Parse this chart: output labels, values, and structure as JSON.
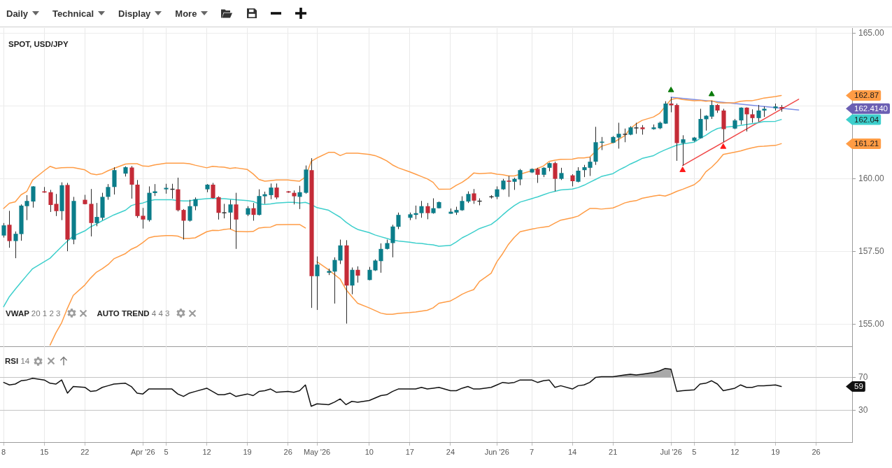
{
  "chart_data": [
    {
      "type": "other",
      "annotations": [
        "Daily",
        "Technical",
        "Display",
        "More"
      ]
    },
    {
      "type": "candlestick",
      "title": "SPOT, USD/JPY",
      "x": [
        "2026-03-08",
        "2026-03-09",
        "2026-03-10",
        "2026-03-11",
        "2026-03-12",
        "2026-03-13",
        "2026-03-15",
        "2026-03-16",
        "2026-03-17",
        "2026-03-18",
        "2026-03-19",
        "2026-03-20",
        "2026-03-22",
        "2026-03-23",
        "2026-03-24",
        "2026-03-25",
        "2026-03-26",
        "2026-03-27",
        "2026-03-29",
        "2026-03-30",
        "2026-03-31",
        "2026-04-01",
        "2026-04-02",
        "2026-04-03",
        "2026-04-05",
        "2026-04-06",
        "2026-04-07",
        "2026-04-08",
        "2026-04-09",
        "2026-04-10",
        "2026-04-12",
        "2026-04-13",
        "2026-04-14",
        "2026-04-15",
        "2026-04-16",
        "2026-04-17",
        "2026-04-19",
        "2026-04-20",
        "2026-04-21",
        "2026-04-22",
        "2026-04-23",
        "2026-04-24",
        "2026-04-26",
        "2026-04-27",
        "2026-04-28",
        "2026-04-29",
        "2026-04-30",
        "2026-05-01",
        "2026-05-03",
        "2026-05-04",
        "2026-05-05",
        "2026-05-06",
        "2026-05-07",
        "2026-05-08",
        "2026-05-10",
        "2026-05-11",
        "2026-05-12",
        "2026-05-13",
        "2026-05-14",
        "2026-05-15",
        "2026-05-17",
        "2026-05-18",
        "2026-05-19",
        "2026-05-20",
        "2026-05-21",
        "2026-05-22",
        "2026-05-24",
        "2026-05-25",
        "2026-05-26",
        "2026-05-27",
        "2026-05-28",
        "2026-05-29",
        "2026-05-31",
        "2026-06-01",
        "2026-06-02",
        "2026-06-03",
        "2026-06-04",
        "2026-06-05",
        "2026-06-07",
        "2026-06-08",
        "2026-06-09",
        "2026-06-10",
        "2026-06-11",
        "2026-06-12",
        "2026-06-14",
        "2026-06-15",
        "2026-06-16",
        "2026-06-17",
        "2026-06-18",
        "2026-06-19",
        "2026-06-21",
        "2026-06-22",
        "2026-06-23",
        "2026-06-24",
        "2026-06-25",
        "2026-06-26",
        "2026-06-28",
        "2026-06-29",
        "2026-06-30",
        "2026-07-01",
        "2026-07-02",
        "2026-07-03",
        "2026-07-05",
        "2026-07-06",
        "2026-07-07",
        "2026-07-08",
        "2026-07-09",
        "2026-07-10",
        "2026-07-12",
        "2026-07-13",
        "2026-07-14",
        "2026-07-15",
        "2026-07-16",
        "2026-07-17",
        "2026-07-19",
        "2026-07-20"
      ],
      "ohlc": [
        [
          158.05,
          158.48,
          157.98,
          158.4
        ],
        [
          158.42,
          158.9,
          157.63,
          157.86
        ],
        [
          157.86,
          158.19,
          157.27,
          158.11
        ],
        [
          158.1,
          159.12,
          157.87,
          159.08
        ],
        [
          159.06,
          159.44,
          158.58,
          159.24
        ],
        [
          159.22,
          159.75,
          159.01,
          159.74
        ],
        [
          159.57,
          159.72,
          159.52,
          159.53
        ],
        [
          159.54,
          159.62,
          158.86,
          159.1
        ],
        [
          159.14,
          159.48,
          158.72,
          158.89
        ],
        [
          158.89,
          159.88,
          158.58,
          159.78
        ],
        [
          159.79,
          159.86,
          157.51,
          157.91
        ],
        [
          157.91,
          159.38,
          157.75,
          159.24
        ],
        [
          159.28,
          159.45,
          159.12,
          159.13
        ],
        [
          159.14,
          159.65,
          158.02,
          158.48
        ],
        [
          158.48,
          159.17,
          158.37,
          158.69
        ],
        [
          158.66,
          159.52,
          158.58,
          159.38
        ],
        [
          159.38,
          159.82,
          159.28,
          159.72
        ],
        [
          159.72,
          160.4,
          159.46,
          160.3
        ],
        [
          160.18,
          160.43,
          160.08,
          160.4
        ],
        [
          160.39,
          160.44,
          159.32,
          159.8
        ],
        [
          159.8,
          159.96,
          158.66,
          158.72
        ],
        [
          158.73,
          159.0,
          158.29,
          158.6
        ],
        [
          158.58,
          159.74,
          158.53,
          159.52
        ],
        [
          159.51,
          159.82,
          159.41,
          159.57
        ],
        [
          159.64,
          159.83,
          159.49,
          159.69
        ],
        [
          159.66,
          159.83,
          159.32,
          159.66
        ],
        [
          159.64,
          160.04,
          158.88,
          158.92
        ],
        [
          158.93,
          158.96,
          157.91,
          158.56
        ],
        [
          158.56,
          159.28,
          158.53,
          159.06
        ],
        [
          159.06,
          159.36,
          158.92,
          159.3
        ],
        [
          159.64,
          159.82,
          159.54,
          159.8
        ],
        [
          159.8,
          159.86,
          159.32,
          159.34
        ],
        [
          159.37,
          159.4,
          158.6,
          158.83
        ],
        [
          158.85,
          159.14,
          158.64,
          158.85
        ],
        [
          158.84,
          159.28,
          158.27,
          159.12
        ],
        [
          159.12,
          159.52,
          157.59,
          158.6
        ],
        [
          158.77,
          159.06,
          158.72,
          158.99
        ],
        [
          158.99,
          159.17,
          158.56,
          158.76
        ],
        [
          158.76,
          159.64,
          158.74,
          159.41
        ],
        [
          159.4,
          159.56,
          159.14,
          159.47
        ],
        [
          159.44,
          159.84,
          159.3,
          159.7
        ],
        [
          159.7,
          159.84,
          159.3,
          159.36
        ],
        [
          159.57,
          159.58,
          159.52,
          159.53
        ],
        [
          159.52,
          159.6,
          159.12,
          159.4
        ],
        [
          159.38,
          159.76,
          158.96,
          159.54
        ],
        [
          159.52,
          160.46,
          159.49,
          160.32
        ],
        [
          160.3,
          160.71,
          155.56,
          156.65
        ],
        [
          156.65,
          157.33,
          155.49,
          157.05
        ],
        [
          156.77,
          156.91,
          156.69,
          156.83
        ],
        [
          156.81,
          157.3,
          155.71,
          157.21
        ],
        [
          157.19,
          157.91,
          157.07,
          157.71
        ],
        [
          157.71,
          157.89,
          155.02,
          156.33
        ],
        [
          156.33,
          156.95,
          156.03,
          156.87
        ],
        [
          156.87,
          156.99,
          156.43,
          156.67
        ],
        [
          156.52,
          156.97,
          156.51,
          156.87
        ],
        [
          156.85,
          157.23,
          156.83,
          157.19
        ],
        [
          157.17,
          157.78,
          156.77,
          157.59
        ],
        [
          157.59,
          157.91,
          157.57,
          157.79
        ],
        [
          157.79,
          158.42,
          157.3,
          158.36
        ],
        [
          158.35,
          158.84,
          158.27,
          158.76
        ],
        [
          158.66,
          158.84,
          158.58,
          158.78
        ],
        [
          158.76,
          159.08,
          158.61,
          158.82
        ],
        [
          158.82,
          159.24,
          158.66,
          159.06
        ],
        [
          159.06,
          159.17,
          158.61,
          158.82
        ],
        [
          158.82,
          159.33,
          158.8,
          158.99
        ],
        [
          158.99,
          159.22,
          158.98,
          159.2
        ],
        [
          158.8,
          158.98,
          158.8,
          158.87
        ],
        [
          158.84,
          159.04,
          158.76,
          158.93
        ],
        [
          158.92,
          159.4,
          158.9,
          159.24
        ],
        [
          159.22,
          159.57,
          159.17,
          159.48
        ],
        [
          159.5,
          159.65,
          159.14,
          159.25
        ],
        [
          159.25,
          159.33,
          159.09,
          159.25
        ],
        [
          159.4,
          159.44,
          159.32,
          159.4
        ],
        [
          159.38,
          159.74,
          159.3,
          159.64
        ],
        [
          159.64,
          160.0,
          159.62,
          159.94
        ],
        [
          159.94,
          160.1,
          159.38,
          159.9
        ],
        [
          159.9,
          160.04,
          159.62,
          160.0
        ],
        [
          159.98,
          160.34,
          159.78,
          160.3
        ],
        [
          160.22,
          160.36,
          160.2,
          160.34
        ],
        [
          160.34,
          160.38,
          159.86,
          160.14
        ],
        [
          160.14,
          160.4,
          160.06,
          160.38
        ],
        [
          160.38,
          160.56,
          160.26,
          160.54
        ],
        [
          160.54,
          160.59,
          159.57,
          160.0
        ],
        [
          160.0,
          160.38,
          159.96,
          160.2
        ],
        [
          160.12,
          160.16,
          159.74,
          159.92
        ],
        [
          159.9,
          160.4,
          159.88,
          160.28
        ],
        [
          160.3,
          160.48,
          160.06,
          160.4
        ],
        [
          160.38,
          160.75,
          160.1,
          160.59
        ],
        [
          160.59,
          161.79,
          160.48,
          161.26
        ],
        [
          161.24,
          161.44,
          160.99,
          161.28
        ],
        [
          161.24,
          161.47,
          161.23,
          161.44
        ],
        [
          161.42,
          161.93,
          161.04,
          161.55
        ],
        [
          161.55,
          161.73,
          161.26,
          161.55
        ],
        [
          161.52,
          161.81,
          161.5,
          161.77
        ],
        [
          161.77,
          161.93,
          161.55,
          161.77
        ],
        [
          161.77,
          161.85,
          161.52,
          161.71
        ],
        [
          161.71,
          161.87,
          161.69,
          161.77
        ],
        [
          161.74,
          161.97,
          161.71,
          161.93
        ],
        [
          161.9,
          162.67,
          161.89,
          162.59
        ],
        [
          162.59,
          162.81,
          162.29,
          162.53
        ],
        [
          162.54,
          162.59,
          160.62,
          161.23
        ],
        [
          161.23,
          161.5,
          160.46,
          161.36
        ],
        [
          161.31,
          161.44,
          161.28,
          161.42
        ],
        [
          161.4,
          162.41,
          161.39,
          162.06
        ],
        [
          162.05,
          162.19,
          161.66,
          162.17
        ],
        [
          162.14,
          162.69,
          162.06,
          162.54
        ],
        [
          162.54,
          162.57,
          162.27,
          162.35
        ],
        [
          162.35,
          162.41,
          161.26,
          161.71
        ],
        [
          161.73,
          162.06,
          161.71,
          162.01
        ],
        [
          162.01,
          162.46,
          161.87,
          162.45
        ],
        [
          162.45,
          162.46,
          161.63,
          162.22
        ],
        [
          162.22,
          162.39,
          161.93,
          162.09
        ],
        [
          162.09,
          162.54,
          161.97,
          162.35
        ],
        [
          162.35,
          162.49,
          162.13,
          162.41
        ],
        [
          162.43,
          162.59,
          162.35,
          162.49
        ],
        [
          162.47,
          162.54,
          162.31,
          162.414
        ]
      ],
      "colors": [
        "#0b7d8a",
        "#c42b37",
        "#0b7d8a",
        "#0b7d8a",
        "#0b7d8a",
        "#0b7d8a",
        "#c42b37",
        "#c42b37",
        "#c42b37",
        "#0b7d8a",
        "#c42b37",
        "#0b7d8a",
        "#c42b37",
        "#c42b37",
        "#0b7d8a",
        "#0b7d8a",
        "#0b7d8a",
        "#0b7d8a",
        "#0b7d8a",
        "#c42b37",
        "#c42b37",
        "#c42b37",
        "#0b7d8a",
        "#0b7d8a",
        "#0b7d8a",
        "#333333",
        "#c42b37",
        "#c42b37",
        "#0b7d8a",
        "#0b7d8a",
        "#0b7d8a",
        "#c42b37",
        "#c42b37",
        "#333333",
        "#0b7d8a",
        "#c42b37",
        "#0b7d8a",
        "#c42b37",
        "#0b7d8a",
        "#0b7d8a",
        "#0b7d8a",
        "#c42b37",
        "#c42b37",
        "#c42b37",
        "#0b7d8a",
        "#0b7d8a",
        "#c42b37",
        "#0b7d8a",
        "#0b7d8a",
        "#0b7d8a",
        "#0b7d8a",
        "#c42b37",
        "#0b7d8a",
        "#c42b37",
        "#0b7d8a",
        "#0b7d8a",
        "#0b7d8a",
        "#0b7d8a",
        "#0b7d8a",
        "#0b7d8a",
        "#0b7d8a",
        "#0b7d8a",
        "#0b7d8a",
        "#c42b37",
        "#0b7d8a",
        "#0b7d8a",
        "#0b7d8a",
        "#0b7d8a",
        "#0b7d8a",
        "#0b7d8a",
        "#c42b37",
        "#333333",
        "#333333",
        "#0b7d8a",
        "#0b7d8a",
        "#c42b37",
        "#0b7d8a",
        "#0b7d8a",
        "#0b7d8a",
        "#c42b37",
        "#0b7d8a",
        "#0b7d8a",
        "#c42b37",
        "#0b7d8a",
        "#c42b37",
        "#0b7d8a",
        "#0b7d8a",
        "#0b7d8a",
        "#0b7d8a",
        "#0b7d8a",
        "#0b7d8a",
        "#0b7d8a",
        "#333333",
        "#0b7d8a",
        "#333333",
        "#c42b37",
        "#0b7d8a",
        "#0b7d8a",
        "#0b7d8a",
        "#c42b37",
        "#c42b37",
        "#0b7d8a",
        "#0b7d8a",
        "#0b7d8a",
        "#0b7d8a",
        "#0b7d8a",
        "#c42b37",
        "#c42b37",
        "#0b7d8a",
        "#0b7d8a",
        "#c42b37",
        "#c42b37",
        "#0b7d8a",
        "#0b7d8a",
        "#0b7d8a",
        "#c42b37"
      ],
      "series": [
        {
          "type": "line",
          "color": "#ff9c45",
          "values": [
            158.98,
            159.16,
            159.21,
            159.45,
            159.57,
            159.96,
            160.28,
            160.43,
            160.36,
            160.38,
            160.39,
            160.39,
            160.31,
            160.18,
            160.14,
            160.18,
            160.28,
            160.36,
            160.51,
            160.52,
            160.52,
            160.44,
            160.43,
            160.48,
            160.54,
            160.54,
            160.54,
            160.54,
            160.52,
            160.47,
            160.38,
            160.43,
            160.41,
            160.4,
            160.36,
            160.38,
            160.32,
            160.17,
            159.98,
            159.92,
            159.94,
            159.96,
            159.96,
            159.94,
            159.92,
            160.06,
            160.6,
            160.72,
            160.91,
            160.91,
            160.8,
            160.88,
            160.88,
            160.88,
            160.84,
            160.8,
            160.72,
            160.62,
            160.48,
            160.38,
            160.24,
            160.16,
            160.08,
            160.0,
            159.88,
            159.64,
            159.65,
            159.78,
            159.88,
            160.02,
            160.2,
            160.18,
            160.2,
            160.16,
            160.14,
            160.1,
            160.1,
            160.16,
            160.28,
            160.36,
            160.44,
            160.6,
            160.64,
            160.67,
            160.68,
            160.72,
            160.72,
            160.75,
            160.94,
            161.12,
            161.24,
            161.36,
            161.48,
            161.73,
            161.89,
            162.01,
            162.13,
            162.25,
            162.49,
            162.73,
            162.77,
            162.73,
            162.69,
            162.7,
            162.67,
            162.69,
            162.62,
            162.61,
            162.62,
            162.67,
            162.69,
            162.69,
            162.73,
            162.78,
            162.83,
            162.87
          ]
        },
        {
          "type": "line",
          "color": "#3dcfcc",
          "values": [
            155.6,
            155.95,
            156.2,
            156.44,
            156.68,
            156.91,
            157.15,
            157.27,
            157.47,
            157.67,
            157.86,
            158.03,
            158.21,
            158.35,
            158.45,
            158.56,
            158.66,
            158.76,
            158.92,
            159.08,
            159.14,
            159.17,
            159.24,
            159.28,
            159.28,
            159.28,
            159.25,
            159.24,
            159.24,
            159.28,
            159.32,
            159.33,
            159.32,
            159.32,
            159.3,
            159.28,
            159.25,
            159.22,
            159.14,
            159.12,
            159.14,
            159.17,
            159.19,
            159.19,
            159.17,
            159.19,
            159.12,
            159.01,
            158.92,
            158.8,
            158.68,
            158.51,
            158.37,
            158.26,
            158.15,
            158.07,
            158.01,
            157.95,
            157.89,
            157.86,
            157.82,
            157.79,
            157.78,
            157.75,
            157.73,
            157.68,
            157.71,
            157.83,
            157.97,
            158.07,
            158.18,
            158.29,
            158.43,
            158.58,
            158.76,
            158.93,
            159.08,
            159.2,
            159.32,
            159.38,
            159.45,
            159.52,
            159.57,
            159.62,
            159.65,
            159.7,
            159.78,
            159.88,
            159.98,
            160.08,
            160.18,
            160.3,
            160.4,
            160.51,
            160.6,
            160.7,
            160.8,
            160.91,
            161.0,
            161.08,
            161.16,
            161.2,
            161.26,
            161.39,
            161.5,
            161.63,
            161.73,
            161.77,
            161.81,
            161.84,
            161.87,
            161.9,
            161.93,
            161.97,
            161.98,
            162.04
          ]
        },
        {
          "type": "line",
          "color": "#ff9c45",
          "values": [
            null,
            null,
            null,
            null,
            null,
            null,
            null,
            154.28,
            154.7,
            155.05,
            155.55,
            155.99,
            156.35,
            156.59,
            156.79,
            156.91,
            157.05,
            157.25,
            157.43,
            157.58,
            157.67,
            157.81,
            157.97,
            158.02,
            158.05,
            158.05,
            158.03,
            157.95,
            157.95,
            157.97,
            158.18,
            158.23,
            158.22,
            158.26,
            158.28,
            158.19,
            158.18,
            158.19,
            158.31,
            158.33,
            158.34,
            158.42,
            158.43,
            158.43,
            158.43,
            158.31,
            null,
            157.15,
            156.87,
            156.71,
            156.55,
            156.19,
            155.95,
            155.72,
            155.56,
            155.47,
            155.38,
            155.34,
            155.34,
            155.37,
            155.4,
            155.42,
            155.45,
            155.48,
            155.56,
            155.72,
            155.8,
            155.91,
            156.03,
            156.12,
            156.19,
            156.47,
            156.75,
            157.15,
            157.43,
            157.75,
            157.99,
            158.18,
            158.27,
            158.31,
            158.34,
            158.37,
            158.48,
            158.58,
            158.66,
            158.72,
            158.85,
            158.98,
            158.98,
            158.96,
            159.0,
            159.08,
            159.17,
            159.22,
            159.25,
            159.33,
            159.41,
            159.44,
            159.41,
            159.48,
            159.57,
            159.64,
            159.8,
            159.96,
            160.24,
            160.4,
            160.6,
            160.84,
            160.92,
            160.96,
            161.02,
            161.07,
            161.11,
            161.12,
            161.15,
            161.21
          ]
        },
        {
          "type": "line",
          "color": "#7d8ee6",
          "x": [
            "2026-07-01",
            "2026-07-23"
          ],
          "values": [
            162.81,
            162.37
          ]
        },
        {
          "type": "line",
          "color": "#f04848",
          "x": [
            "2026-07-03",
            "2026-07-23"
          ],
          "values": [
            160.46,
            162.74
          ]
        },
        {
          "type": "scatter",
          "color": "#0a7a0a",
          "marker": "triangle",
          "x": [
            "2026-07-01",
            "2026-07-08"
          ],
          "values": [
            163.05,
            162.91
          ]
        },
        {
          "type": "scatter",
          "color": "#ff1a1a",
          "marker": "triangle",
          "x": [
            "2026-07-03",
            "2026-07-10"
          ],
          "values": [
            160.3,
            161.1
          ]
        }
      ],
      "xlim": [
        "2026-03-07T09:00",
        "2026-08-01T05:00"
      ],
      "xticks": [
        {
          "value": "2026-03-08",
          "label": null
        },
        {
          "value": "2026-03-15",
          "label": null
        },
        {
          "value": "2026-03-22",
          "label": null
        },
        {
          "value": "2026-04-01",
          "label": null
        },
        {
          "value": "2026-04-05",
          "label": null
        },
        {
          "value": "2026-04-12",
          "label": null
        },
        {
          "value": "2026-04-19",
          "label": null
        },
        {
          "value": "2026-04-26",
          "label": null
        },
        {
          "value": "2026-05-01",
          "label": null
        },
        {
          "value": "2026-05-10",
          "label": null
        },
        {
          "value": "2026-05-17",
          "label": null
        },
        {
          "value": "2026-05-24",
          "label": null
        },
        {
          "value": "2026-06-01",
          "label": null
        },
        {
          "value": "2026-06-07",
          "label": null
        },
        {
          "value": "2026-06-14",
          "label": null
        },
        {
          "value": "2026-06-21",
          "label": null
        },
        {
          "value": "2026-07-01",
          "label": null
        },
        {
          "value": "2026-07-05",
          "label": null
        },
        {
          "value": "2026-07-12",
          "label": null
        },
        {
          "value": "2026-07-19",
          "label": null
        },
        {
          "value": "2026-07-26",
          "label": null
        }
      ],
      "ylim": [
        154.24,
        165.19
      ],
      "yticks": [
        {
          "value": 155,
          "label": "155.00"
        },
        {
          "value": 157.5,
          "label": "157.50"
        },
        {
          "value": 160,
          "label": "160.00"
        },
        {
          "value": 162.5,
          "label": null
        },
        {
          "value": 165,
          "label": "165.00"
        }
      ],
      "grid": true,
      "tick_labels": "y",
      "annotations": [
        "VWAP 20 1 2 3",
        "AUTO TREND 4 4 3",
        "162.87",
        "162.4140",
        "162.04",
        "161.21"
      ]
    },
    {
      "type": "line",
      "title": "RSI 14",
      "x": [
        "2026-03-08",
        "2026-03-09",
        "2026-03-10",
        "2026-03-11",
        "2026-03-12",
        "2026-03-13",
        "2026-03-15",
        "2026-03-16",
        "2026-03-17",
        "2026-03-18",
        "2026-03-19",
        "2026-03-20",
        "2026-03-22",
        "2026-03-23",
        "2026-03-24",
        "2026-03-25",
        "2026-03-26",
        "2026-03-27",
        "2026-03-29",
        "2026-03-30",
        "2026-03-31",
        "2026-04-01",
        "2026-04-02",
        "2026-04-03",
        "2026-04-05",
        "2026-04-06",
        "2026-04-07",
        "2026-04-08",
        "2026-04-09",
        "2026-04-10",
        "2026-04-12",
        "2026-04-13",
        "2026-04-14",
        "2026-04-15",
        "2026-04-16",
        "2026-04-17",
        "2026-04-19",
        "2026-04-20",
        "2026-04-21",
        "2026-04-22",
        "2026-04-23",
        "2026-04-24",
        "2026-04-26",
        "2026-04-27",
        "2026-04-28",
        "2026-04-29",
        "2026-04-30",
        "2026-05-01",
        "2026-05-03",
        "2026-05-04",
        "2026-05-05",
        "2026-05-06",
        "2026-05-07",
        "2026-05-08",
        "2026-05-10",
        "2026-05-11",
        "2026-05-12",
        "2026-05-13",
        "2026-05-14",
        "2026-05-15",
        "2026-05-17",
        "2026-05-18",
        "2026-05-19",
        "2026-05-20",
        "2026-05-21",
        "2026-05-22",
        "2026-05-24",
        "2026-05-25",
        "2026-05-26",
        "2026-05-27",
        "2026-05-28",
        "2026-05-29",
        "2026-05-31",
        "2026-06-01",
        "2026-06-02",
        "2026-06-03",
        "2026-06-04",
        "2026-06-05",
        "2026-06-07",
        "2026-06-08",
        "2026-06-09",
        "2026-06-10",
        "2026-06-11",
        "2026-06-12",
        "2026-06-14",
        "2026-06-15",
        "2026-06-16",
        "2026-06-17",
        "2026-06-18",
        "2026-06-19",
        "2026-06-21",
        "2026-06-22",
        "2026-06-23",
        "2026-06-24",
        "2026-06-25",
        "2026-06-26",
        "2026-06-28",
        "2026-06-29",
        "2026-06-30",
        "2026-07-01",
        "2026-07-02",
        "2026-07-03",
        "2026-07-05",
        "2026-07-06",
        "2026-07-07",
        "2026-07-08",
        "2026-07-09",
        "2026-07-10",
        "2026-07-12",
        "2026-07-13",
        "2026-07-14",
        "2026-07-15",
        "2026-07-16",
        "2026-07-17",
        "2026-07-19",
        "2026-07-20"
      ],
      "series": [
        {
          "color": "#111111",
          "values": [
            64,
            61,
            62,
            66,
            67,
            69,
            67,
            63,
            62,
            67,
            51,
            59,
            58,
            53,
            54,
            58,
            60,
            62,
            63,
            59,
            51,
            50,
            56,
            56,
            56,
            56,
            50,
            47,
            51,
            53,
            57,
            53,
            49,
            49,
            51,
            47,
            50,
            48,
            53,
            54,
            56,
            52,
            53,
            52,
            54,
            61,
            35,
            38,
            37,
            40,
            44,
            37,
            41,
            40,
            42,
            45,
            48,
            49,
            53,
            56,
            56,
            56,
            58,
            56,
            57,
            58,
            54,
            54,
            57,
            59,
            56,
            56,
            58,
            61,
            64,
            63,
            64,
            67,
            67,
            64,
            66,
            67,
            58,
            60,
            56,
            60,
            61,
            64,
            70,
            71,
            71,
            72,
            73,
            74,
            73,
            74,
            76,
            78,
            81,
            80,
            53,
            54,
            55,
            62,
            63,
            66,
            62,
            54,
            57,
            61,
            58,
            58,
            60,
            60,
            61,
            59
          ],
          "lower": [
            null,
            null,
            null,
            null,
            null,
            null,
            null,
            null,
            null,
            null,
            null,
            null,
            null,
            null,
            null,
            null,
            null,
            null,
            null,
            null,
            null,
            null,
            null,
            null,
            null,
            null,
            null,
            null,
            null,
            null,
            null,
            null,
            null,
            null,
            null,
            null,
            null,
            null,
            null,
            null,
            null,
            null,
            null,
            null,
            null,
            null,
            null,
            null,
            null,
            null,
            null,
            null,
            null,
            null,
            null,
            null,
            null,
            null,
            null,
            null,
            null,
            null,
            null,
            null,
            null,
            null,
            null,
            null,
            null,
            null,
            null,
            null,
            null,
            null,
            null,
            null,
            null,
            null,
            null,
            null,
            null,
            null,
            null,
            null,
            null,
            null,
            null,
            null,
            70,
            70,
            70,
            70,
            70,
            70,
            70,
            70,
            70,
            70,
            70,
            70,
            null,
            null,
            null,
            null,
            null,
            null,
            null,
            null,
            null,
            null,
            null,
            null,
            null,
            null,
            null,
            null
          ],
          "upper": [
            null,
            null,
            null,
            null,
            null,
            null,
            null,
            null,
            null,
            null,
            null,
            null,
            null,
            null,
            null,
            null,
            null,
            null,
            null,
            null,
            null,
            null,
            null,
            null,
            null,
            null,
            null,
            null,
            null,
            null,
            null,
            null,
            null,
            null,
            null,
            null,
            null,
            null,
            null,
            null,
            null,
            null,
            null,
            null,
            null,
            null,
            null,
            null,
            null,
            null,
            null,
            null,
            null,
            null,
            null,
            null,
            null,
            null,
            null,
            null,
            null,
            null,
            null,
            null,
            null,
            null,
            null,
            null,
            null,
            null,
            null,
            null,
            null,
            null,
            null,
            null,
            null,
            null,
            null,
            null,
            null,
            null,
            null,
            null,
            null,
            null,
            null,
            null,
            70,
            71,
            71,
            72,
            73,
            74,
            73,
            74,
            76,
            78,
            81,
            80,
            null,
            null,
            null,
            null,
            null,
            null,
            null,
            null,
            null,
            null,
            null,
            null,
            null,
            null,
            null,
            null
          ]
        }
      ],
      "xlim": [
        "2026-03-07T09:00",
        "2026-08-01T05:00"
      ],
      "xticks": [
        {
          "value": "2026-03-08",
          "label": "8"
        },
        {
          "value": "2026-03-15",
          "label": "15"
        },
        {
          "value": "2026-03-22",
          "label": "22"
        },
        {
          "value": "2026-04-01",
          "label": "Apr '26"
        },
        {
          "value": "2026-04-05",
          "label": "5"
        },
        {
          "value": "2026-04-12",
          "label": "12"
        },
        {
          "value": "2026-04-19",
          "label": "19"
        },
        {
          "value": "2026-04-26",
          "label": "26"
        },
        {
          "value": "2026-05-01",
          "label": "May '26"
        },
        {
          "value": "2026-05-10",
          "label": "10"
        },
        {
          "value": "2026-05-17",
          "label": "17"
        },
        {
          "value": "2026-05-24",
          "label": "24"
        },
        {
          "value": "2026-06-01",
          "label": "Jun '26"
        },
        {
          "value": "2026-06-07",
          "label": "7"
        },
        {
          "value": "2026-06-14",
          "label": "14"
        },
        {
          "value": "2026-06-21",
          "label": "21"
        },
        {
          "value": "2026-07-01",
          "label": "Jul '26"
        },
        {
          "value": "2026-07-05",
          "label": "5"
        },
        {
          "value": "2026-07-12",
          "label": "12"
        },
        {
          "value": "2026-07-19",
          "label": "19"
        },
        {
          "value": "2026-07-26",
          "label": "26"
        }
      ],
      "ylim": [
        -8.5,
        107.9
      ],
      "yticks": [
        30,
        70
      ],
      "grid": true,
      "annotations": [
        "59"
      ]
    }
  ]
}
